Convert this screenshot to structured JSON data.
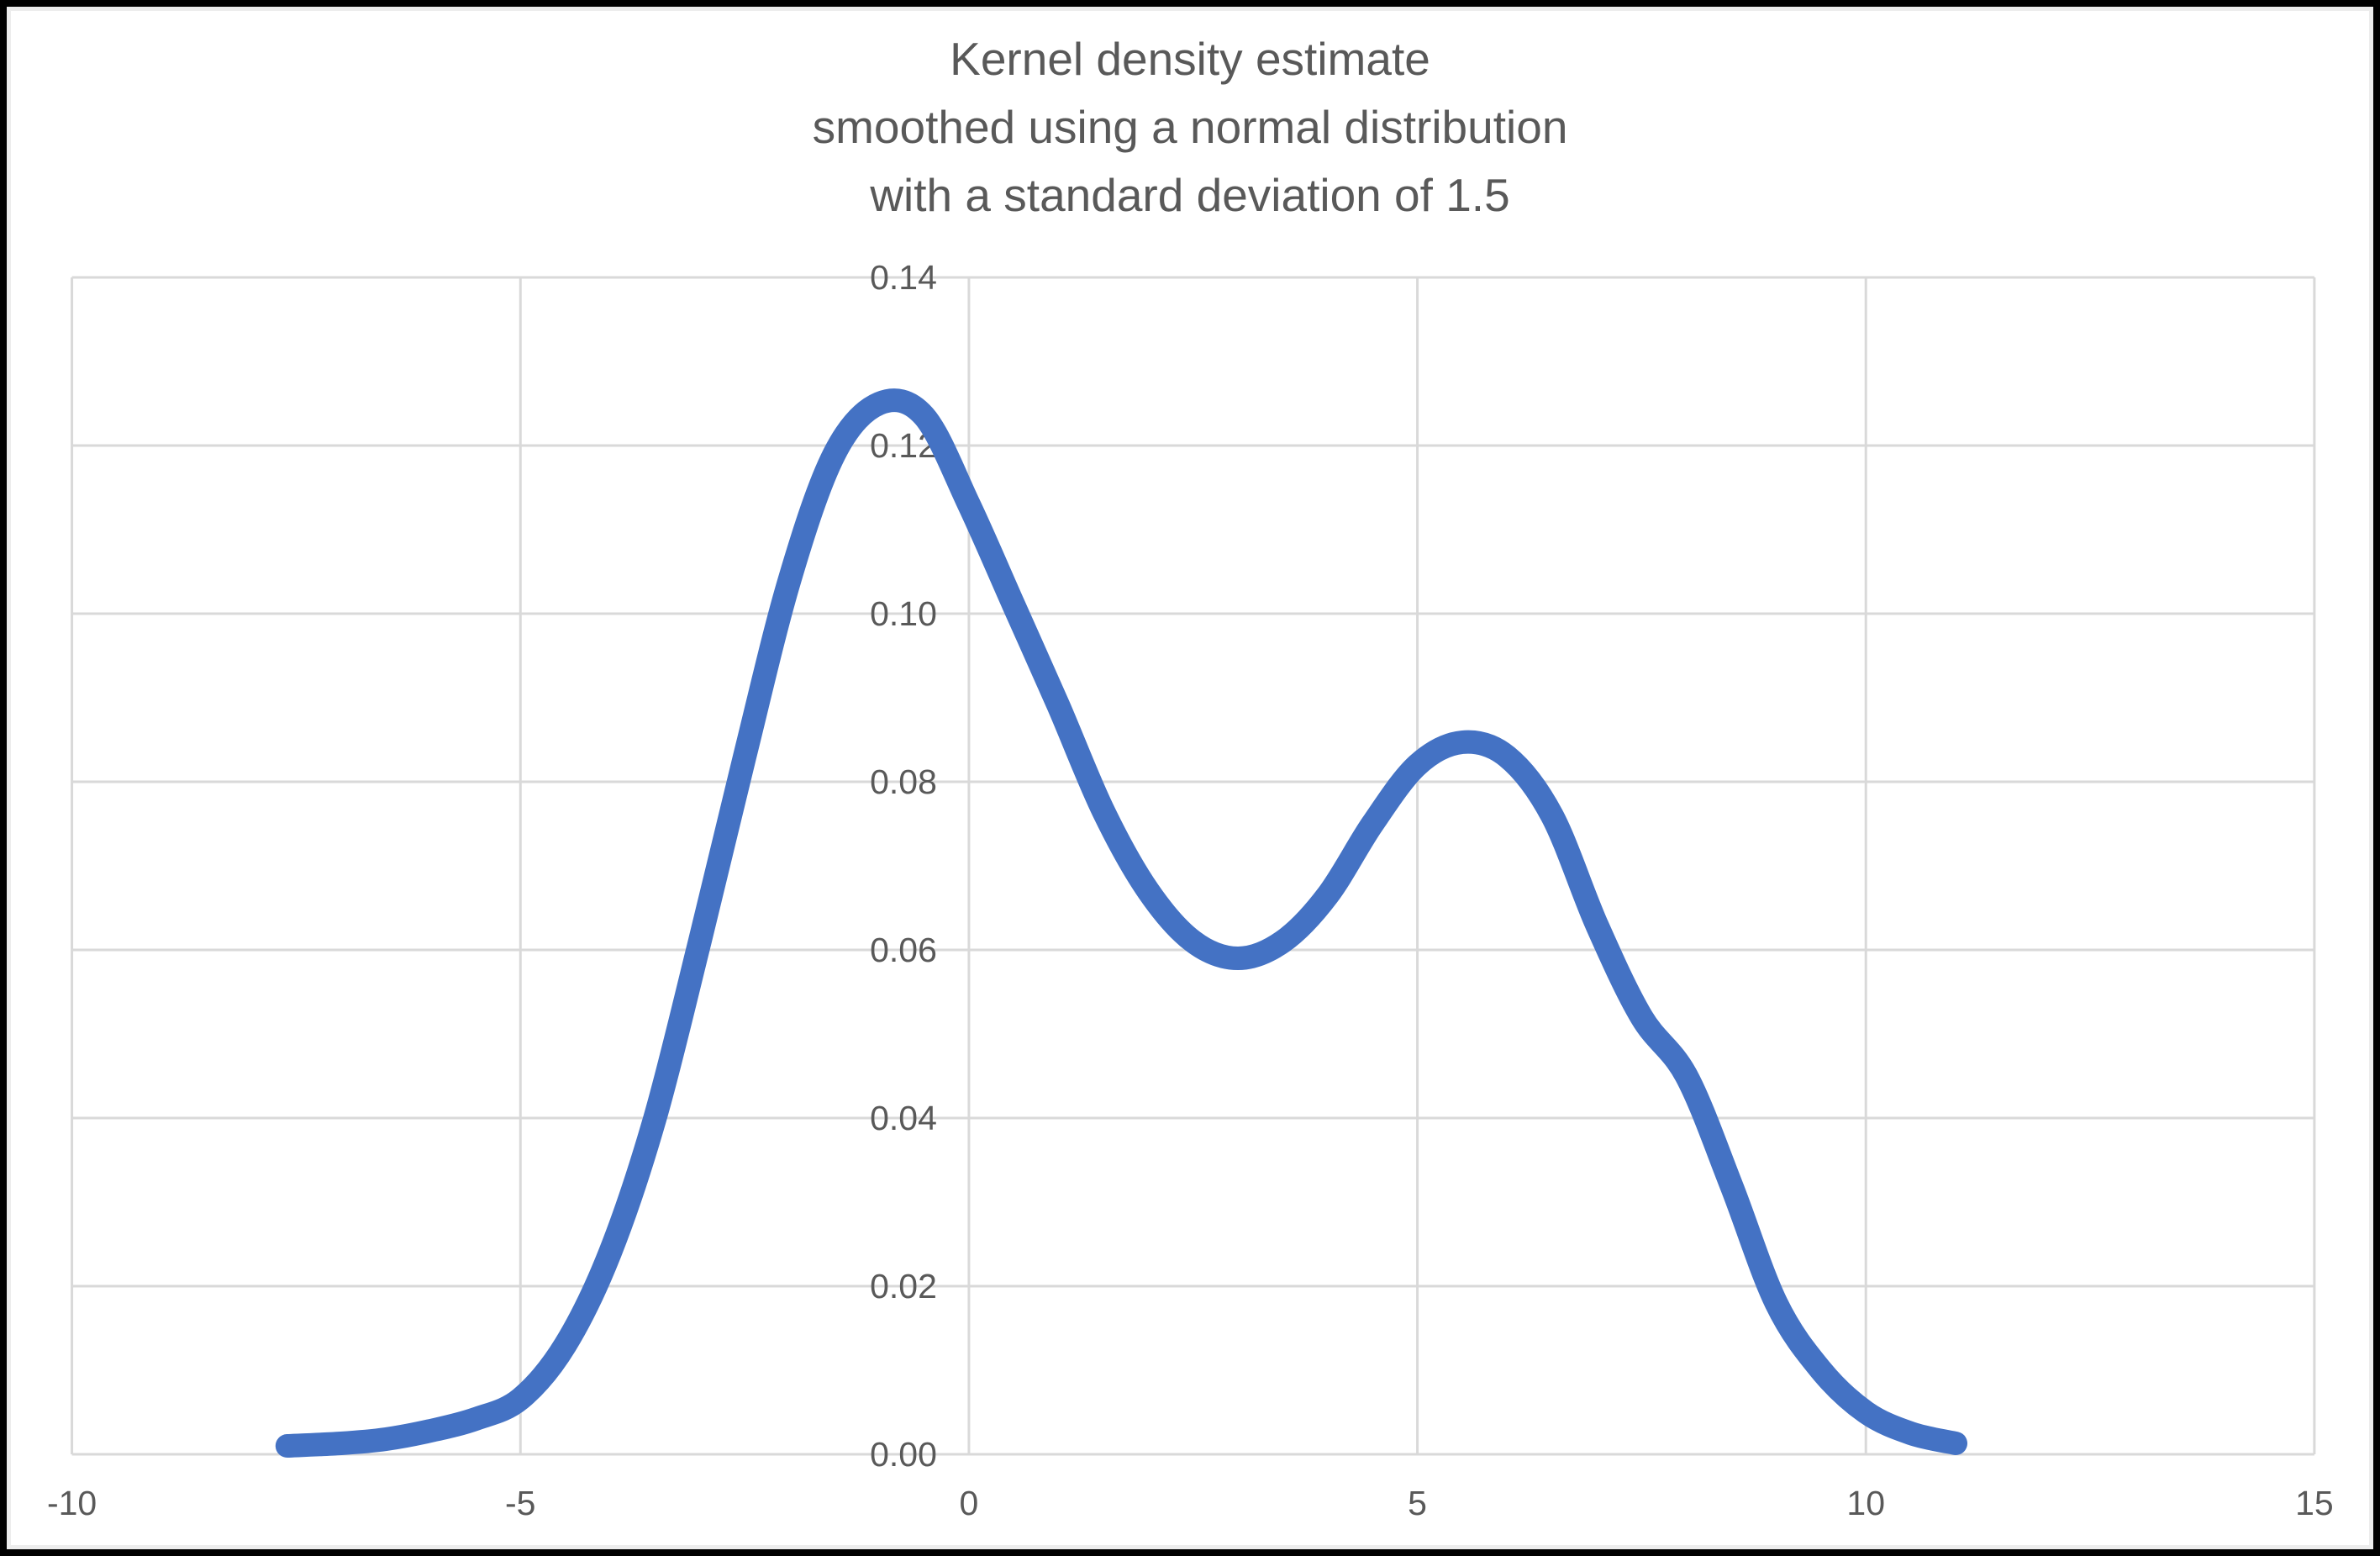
{
  "window": {
    "background": "#ffffff",
    "frame_border_color": "#000000"
  },
  "title": {
    "lines": [
      "Kernel density estimate",
      "smoothed using a normal distribution",
      "with a standard deviation of 1.5"
    ],
    "color": "#595959"
  },
  "colors": {
    "gridline": "#d9d9d9",
    "tick_label": "#595959",
    "curve": "#4472c4"
  },
  "chart_data": {
    "type": "line",
    "title": "Kernel density estimate smoothed using a normal distribution with a standard deviation of 1.5",
    "xlabel": "",
    "ylabel": "",
    "xlim": [
      -10,
      15
    ],
    "ylim": [
      0,
      0.14
    ],
    "grid": true,
    "legend_position": "none",
    "x_ticks": [
      {
        "v": -10,
        "label": "-10"
      },
      {
        "v": -5,
        "label": "-5"
      },
      {
        "v": 0,
        "label": "0"
      },
      {
        "v": 5,
        "label": "5"
      },
      {
        "v": 10,
        "label": "10"
      },
      {
        "v": 15,
        "label": "15"
      }
    ],
    "y_ticks": [
      {
        "v": 0.0,
        "label": "0.00"
      },
      {
        "v": 0.02,
        "label": "0.02"
      },
      {
        "v": 0.04,
        "label": "0.04"
      },
      {
        "v": 0.06,
        "label": "0.06"
      },
      {
        "v": 0.08,
        "label": "0.08"
      },
      {
        "v": 0.1,
        "label": "0.10"
      },
      {
        "v": 0.12,
        "label": "0.12"
      },
      {
        "v": 0.14,
        "label": "0.14"
      }
    ],
    "series": [
      {
        "name": "Kernel density estimate",
        "color": "#4472c4",
        "line_width": 28,
        "points": [
          [
            -7.6,
            0.001
          ],
          [
            -7.0,
            0.0013
          ],
          [
            -6.5,
            0.0018
          ],
          [
            -6.0,
            0.0028
          ],
          [
            -5.5,
            0.0042
          ],
          [
            -5.0,
            0.0066
          ],
          [
            -4.5,
            0.013
          ],
          [
            -4.0,
            0.024
          ],
          [
            -3.5,
            0.04
          ],
          [
            -3.0,
            0.061
          ],
          [
            -2.5,
            0.083
          ],
          [
            -2.0,
            0.104
          ],
          [
            -1.5,
            0.119
          ],
          [
            -1.0,
            0.125
          ],
          [
            -0.5,
            0.1235
          ],
          [
            0.0,
            0.113
          ],
          [
            0.5,
            0.101
          ],
          [
            1.0,
            0.089
          ],
          [
            1.5,
            0.0765
          ],
          [
            2.0,
            0.067
          ],
          [
            2.5,
            0.061
          ],
          [
            3.0,
            0.059
          ],
          [
            3.5,
            0.061
          ],
          [
            4.0,
            0.0665
          ],
          [
            4.5,
            0.075
          ],
          [
            5.0,
            0.082
          ],
          [
            5.5,
            0.0847
          ],
          [
            6.0,
            0.083
          ],
          [
            6.5,
            0.076
          ],
          [
            7.0,
            0.063
          ],
          [
            7.5,
            0.052
          ],
          [
            8.0,
            0.045
          ],
          [
            8.5,
            0.032
          ],
          [
            9.0,
            0.018
          ],
          [
            9.5,
            0.01
          ],
          [
            10.0,
            0.005
          ],
          [
            10.5,
            0.0025
          ],
          [
            11.0,
            0.0013
          ]
        ]
      }
    ]
  }
}
